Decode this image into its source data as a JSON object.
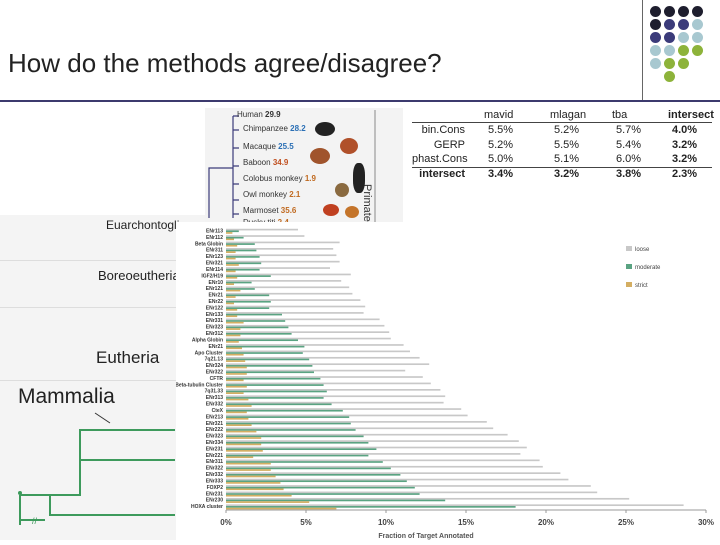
{
  "slide": {
    "title": "How do the methods agree/disagree?"
  },
  "decor_dot_colors": [
    "#1e1e2e",
    "#3b3b7a",
    "#a8c8d0",
    "#8db33a"
  ],
  "tree": {
    "labels": [
      "Euarchontoglires",
      "Boreoeutheria",
      "Eutheria",
      "Mammalia"
    ]
  },
  "primates": {
    "clade_label": "Primates",
    "species": [
      {
        "name": "Human",
        "value": "29.9"
      },
      {
        "name": "Chimpanzee",
        "value": "28.2"
      },
      {
        "name": "Macaque",
        "value": "25.5"
      },
      {
        "name": "Baboon",
        "value": "34.9"
      },
      {
        "name": "Colobus monkey",
        "value": "1.9"
      },
      {
        "name": "Owl monkey",
        "value": "2.1"
      },
      {
        "name": "Marmoset",
        "value": "35.6"
      },
      {
        "name": "Dusky titi",
        "value": "2.4"
      }
    ]
  },
  "table": {
    "columns": [
      "mavid",
      "mlagan",
      "tba",
      "intersect"
    ],
    "rows": [
      {
        "label": "bin.Cons",
        "values": [
          "5.5%",
          "5.2%",
          "5.7%",
          "4.0%"
        ]
      },
      {
        "label": "GERP",
        "values": [
          "5.2%",
          "5.5%",
          "5.4%",
          "3.2%"
        ]
      },
      {
        "label": "phast.Cons",
        "values": [
          "5.0%",
          "5.1%",
          "6.0%",
          "3.2%"
        ]
      },
      {
        "label": "intersect",
        "values": [
          "3.4%",
          "3.2%",
          "3.8%",
          "2.3%"
        ]
      }
    ]
  },
  "chart_data": {
    "type": "bar",
    "orientation": "horizontal",
    "stacked": false,
    "xlabel": "Fraction of Target Annotated",
    "xlim": [
      0,
      0.3
    ],
    "xticks": [
      "0%",
      "5%",
      "10%",
      "15%",
      "20%",
      "25%",
      "30%"
    ],
    "legend": [
      {
        "name": "loose",
        "color": "#c8c8c8"
      },
      {
        "name": "moderate",
        "color": "#5aa382"
      },
      {
        "name": "strict",
        "color": "#d4ae62"
      }
    ],
    "legend_position": "right",
    "categories": [
      "ENr113",
      "ENr112",
      "Beta Globin",
      "ENr311",
      "ENr123",
      "ENr321",
      "ENr114",
      "IGF2/H19",
      "ENr10",
      "ENr121",
      "ENr21",
      "ENr22",
      "ENr122",
      "ENr133",
      "ENr331",
      "ENr323",
      "ENr312",
      "Alpha Globin",
      "ENr21",
      "Apo Cluster",
      "7q21.13",
      "ENr324",
      "ENr322",
      "CFTR",
      "Beta-tubulin Cluster",
      "7q31.33",
      "ENr313",
      "ENr332",
      "CteX",
      "ENr213",
      "ENr321",
      "ENr222",
      "ENr323",
      "ENr334",
      "ENr231",
      "ENr221",
      "ENr311",
      "ENr322",
      "ENr332",
      "ENr333",
      "FOXP2",
      "ENr231",
      "ENr230",
      "HOXA cluster"
    ],
    "series": [
      {
        "name": "loose",
        "values": [
          0.045,
          0.049,
          0.071,
          0.067,
          0.069,
          0.071,
          0.065,
          0.078,
          0.072,
          0.077,
          0.079,
          0.084,
          0.087,
          0.086,
          0.096,
          0.099,
          0.102,
          0.103,
          0.111,
          0.115,
          0.121,
          0.127,
          0.112,
          0.123,
          0.128,
          0.134,
          0.137,
          0.136,
          0.147,
          0.151,
          0.163,
          0.167,
          0.176,
          0.183,
          0.188,
          0.184,
          0.196,
          0.198,
          0.209,
          0.214,
          0.228,
          0.232,
          0.252,
          0.286
        ]
      },
      {
        "name": "moderate",
        "values": [
          0.008,
          0.011,
          0.018,
          0.019,
          0.021,
          0.022,
          0.021,
          0.028,
          0.016,
          0.018,
          0.027,
          0.028,
          0.027,
          0.035,
          0.037,
          0.039,
          0.041,
          0.045,
          0.049,
          0.048,
          0.052,
          0.054,
          0.055,
          0.059,
          0.061,
          0.063,
          0.061,
          0.066,
          0.073,
          0.077,
          0.078,
          0.081,
          0.086,
          0.089,
          0.094,
          0.089,
          0.098,
          0.103,
          0.109,
          0.113,
          0.118,
          0.121,
          0.137,
          0.181
        ]
      },
      {
        "name": "strict",
        "values": [
          0.004,
          0.005,
          0.007,
          0.006,
          0.006,
          0.008,
          0.006,
          0.007,
          0.005,
          0.009,
          0.006,
          0.005,
          0.007,
          0.007,
          0.011,
          0.009,
          0.009,
          0.008,
          0.01,
          0.011,
          0.012,
          0.013,
          0.013,
          0.011,
          0.013,
          0.011,
          0.014,
          0.016,
          0.013,
          0.014,
          0.016,
          0.019,
          0.022,
          0.022,
          0.023,
          0.017,
          0.028,
          0.028,
          0.031,
          0.034,
          0.036,
          0.041,
          0.052,
          0.069
        ]
      }
    ]
  }
}
